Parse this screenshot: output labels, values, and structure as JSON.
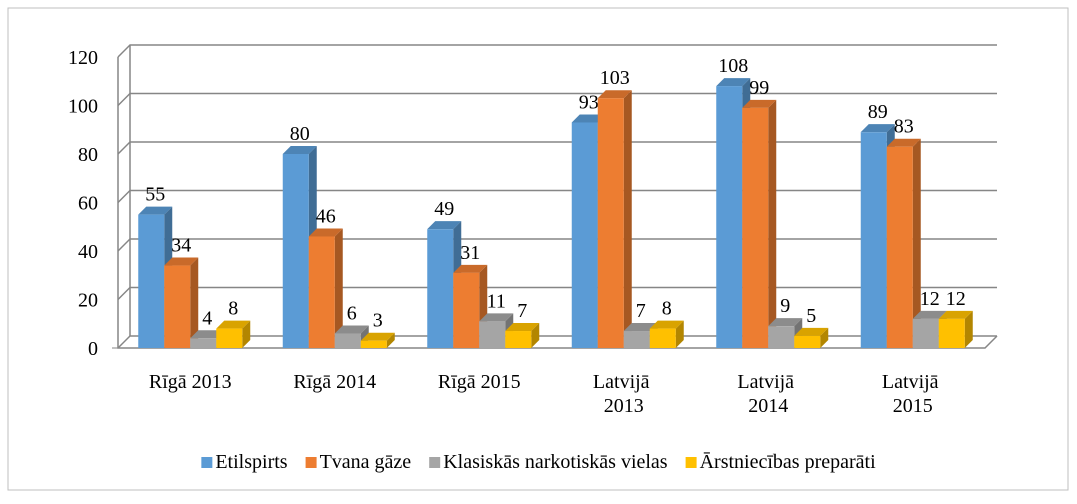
{
  "chart_data": {
    "type": "bar3d",
    "categories": [
      "Rīgā 2013",
      "Rīgā 2014",
      "Rīgā 2015",
      "Latvijā 2013",
      "Latvijā 2014",
      "Latvijā 2015"
    ],
    "series": [
      {
        "name": "Etilspirts",
        "color": "#5b9bd5",
        "values": [
          55,
          80,
          49,
          93,
          108,
          89
        ]
      },
      {
        "name": "Tvana gāze",
        "color": "#ed7d31",
        "values": [
          34,
          46,
          31,
          103,
          99,
          83
        ]
      },
      {
        "name": "Klasiskās narkotiskās vielas",
        "color": "#a5a5a5",
        "values": [
          4,
          6,
          11,
          7,
          9,
          12
        ]
      },
      {
        "name": "Ārstniecības preparāti",
        "color": "#ffc000",
        "values": [
          8,
          3,
          7,
          8,
          5,
          12
        ]
      }
    ],
    "ylim": [
      0,
      120
    ],
    "yticks": [
      0,
      20,
      40,
      60,
      80,
      100,
      120
    ],
    "grid": true,
    "legend": "bottom"
  }
}
